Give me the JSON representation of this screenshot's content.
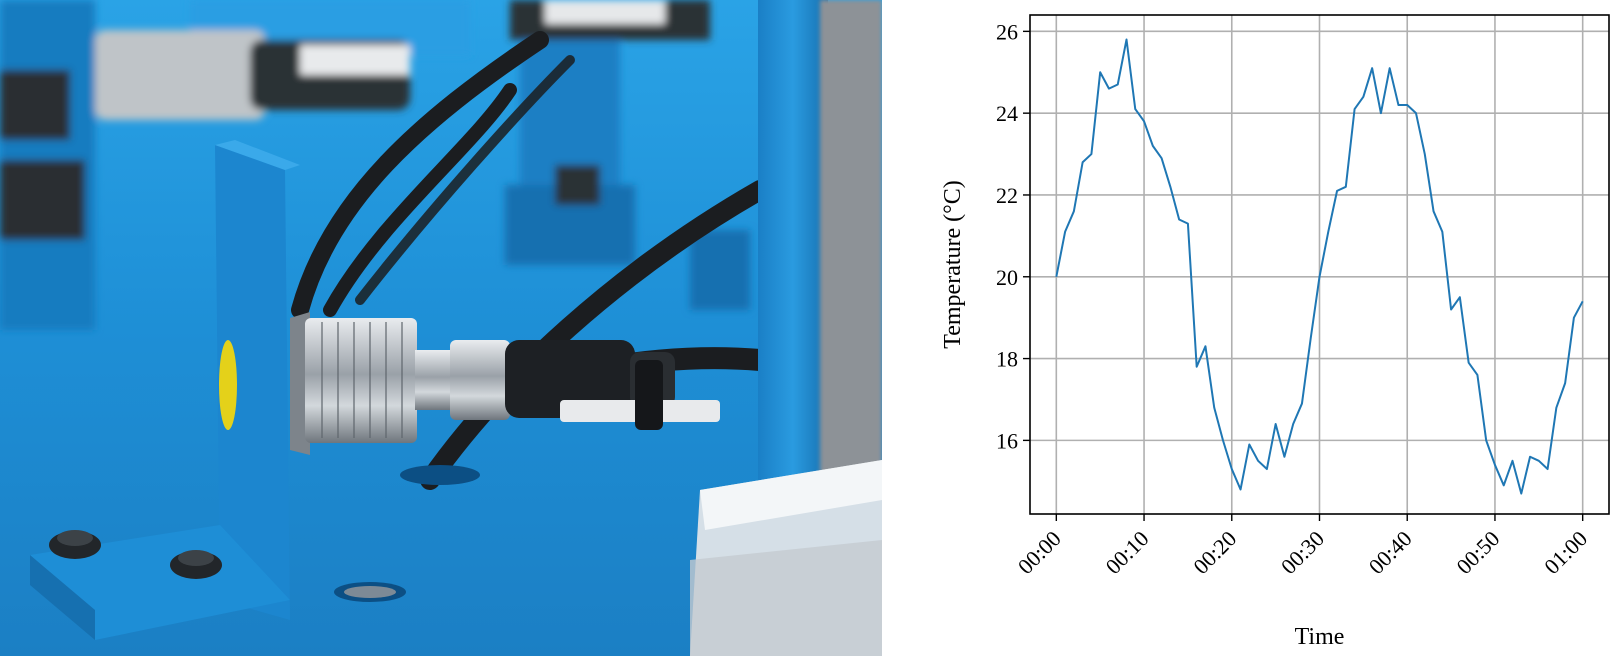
{
  "photo": {
    "description_icon": "sensor-photo",
    "colors": {
      "base": "#1f8fd6",
      "dark": "#0f5f9e",
      "metal": "#c9ced3",
      "cable": "#1b1d20",
      "target": "#e4d11a"
    }
  },
  "chart_data": {
    "type": "line",
    "title": "",
    "xlabel": "Time",
    "ylabel": "Temperature (°C)",
    "x_unit": "minutes",
    "xlim": [
      "00:00",
      "01:00"
    ],
    "ylim": [
      14.2,
      26.4
    ],
    "xticks": [
      "00:00",
      "00:10",
      "00:20",
      "00:30",
      "00:40",
      "00:50",
      "01:00"
    ],
    "yticks": [
      16,
      18,
      20,
      22,
      24,
      26
    ],
    "grid": true,
    "legend": "none",
    "line_color": "#1f77b4",
    "series": [
      {
        "x": [
          "00:00",
          "00:01",
          "00:02",
          "00:03",
          "00:04",
          "00:05",
          "00:06",
          "00:07",
          "00:08",
          "00:09",
          "00:10",
          "00:11",
          "00:12",
          "00:13",
          "00:14",
          "00:15",
          "00:16",
          "00:17",
          "00:18",
          "00:19",
          "00:20",
          "00:21",
          "00:22",
          "00:23",
          "00:24",
          "00:25",
          "00:26",
          "00:27",
          "00:28",
          "00:29",
          "00:30",
          "00:31",
          "00:32",
          "00:33",
          "00:34",
          "00:35",
          "00:36",
          "00:37",
          "00:38",
          "00:39",
          "00:40",
          "00:41",
          "00:42",
          "00:43",
          "00:44",
          "00:45",
          "00:46",
          "00:47",
          "00:48",
          "00:49",
          "00:50",
          "00:51",
          "00:52",
          "00:53",
          "00:54",
          "00:55",
          "00:56",
          "00:57",
          "00:58",
          "00:59",
          "01:00"
        ],
        "values": [
          20.0,
          21.1,
          21.6,
          22.8,
          23.0,
          25.0,
          24.6,
          24.7,
          25.8,
          24.1,
          23.8,
          23.2,
          22.9,
          22.2,
          21.4,
          21.3,
          17.8,
          18.3,
          16.8,
          16.0,
          15.3,
          14.8,
          15.9,
          15.5,
          15.3,
          16.4,
          15.6,
          16.4,
          16.9,
          18.5,
          20.0,
          21.1,
          22.1,
          22.2,
          24.1,
          24.4,
          25.1,
          24.0,
          25.1,
          24.2,
          24.2,
          24.0,
          23.0,
          21.6,
          21.1,
          19.2,
          19.5,
          17.9,
          17.6,
          16.0,
          15.4,
          14.9,
          15.5,
          14.7,
          15.6,
          15.5,
          15.3,
          16.8,
          17.4,
          19.0,
          19.4
        ]
      }
    ]
  }
}
